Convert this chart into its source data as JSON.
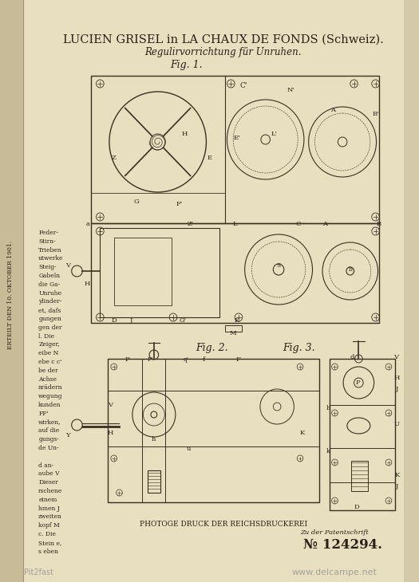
{
  "bg_color": "#d4c9a8",
  "page_bg": "#e8dfc0",
  "left_strip_color": "#c8bb98",
  "title_line1": "LUCIEN GRISEL in LA CHAUX DE FONDS (Schweiz).",
  "title_line2": "Regulirvorrichtung für Unruhen.",
  "fig1_label": "Fig. 1.",
  "fig2_label": "Fig. 2.",
  "fig3_label": "Fig. 3.",
  "bottom_text1": "PHOTOGE DRUCK DER REICHSDRUCKEREI",
  "bottom_text2": "Zu der Patentschrift",
  "patent_number": "№ 124294.",
  "watermark_text": "www.delcampe.net",
  "credit_text": "Pit2fast",
  "sidebar_text": "ERTEILT DEN 10. OKTOBER 1901.",
  "ink_color": "#2a2015",
  "line_color": "#3a3020",
  "title_fontsize": 10.5,
  "subtitle_fontsize": 8.5,
  "fig_label_fontsize": 9,
  "small_fontsize": 6.5
}
